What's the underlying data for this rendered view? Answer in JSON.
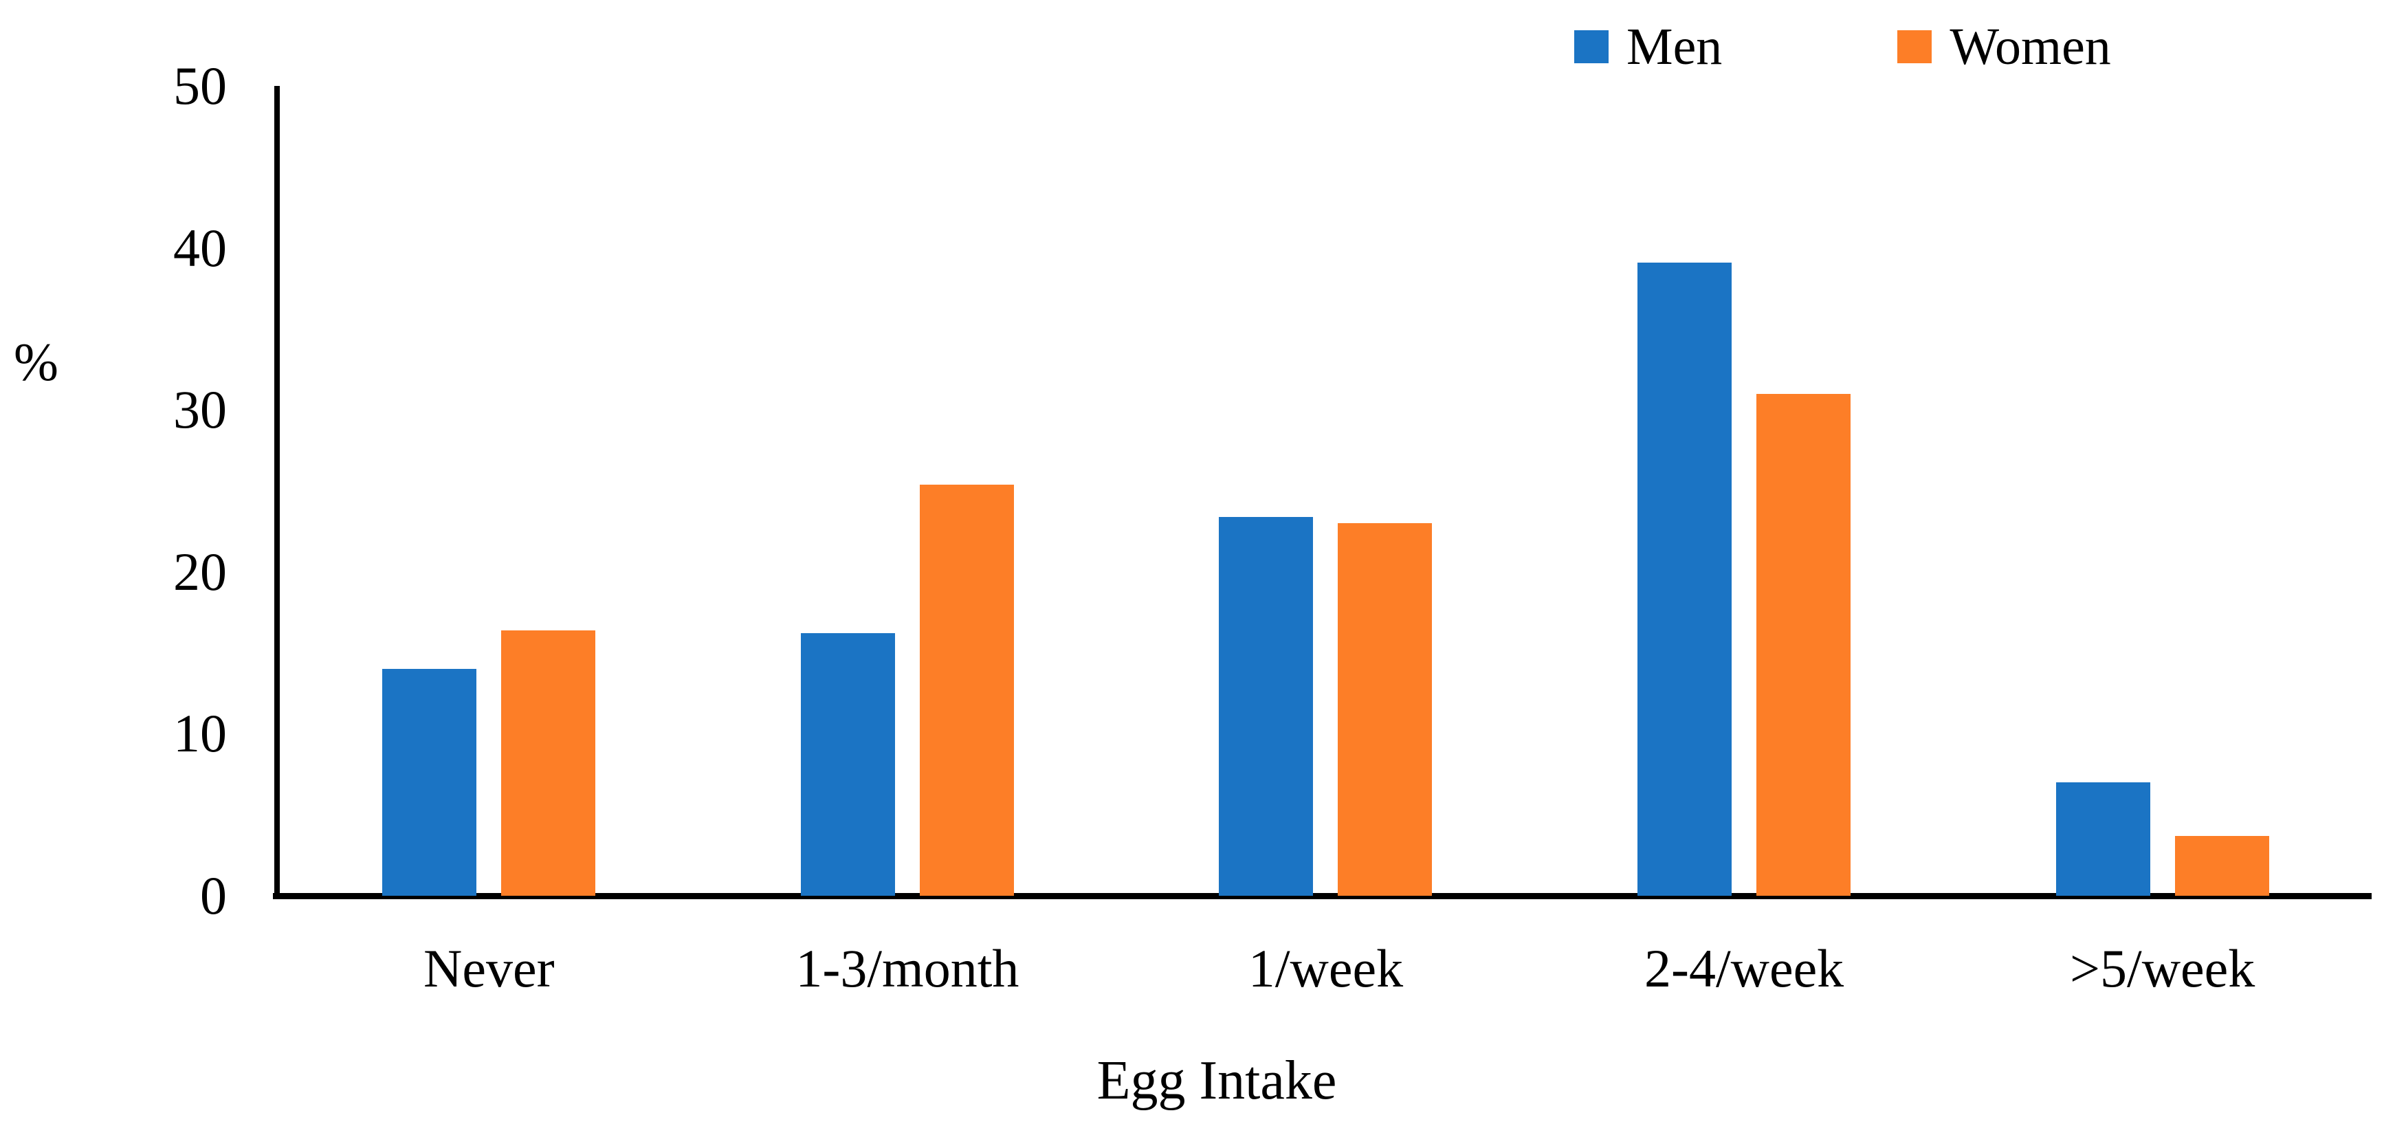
{
  "figure": {
    "background_color": "#FFFFFF",
    "axis_color": "#000000"
  },
  "chart_data": {
    "type": "bar",
    "title": "",
    "categories": [
      "Never",
      "1-3/month",
      "1/week",
      "2-4/week",
      ">5/week"
    ],
    "series": [
      {
        "name": "Men",
        "color": "#1B74C4",
        "values": [
          14.0,
          16.2,
          23.4,
          39.1,
          7.0
        ]
      },
      {
        "name": "Women",
        "color": "#FD7E27",
        "values": [
          16.4,
          25.4,
          23.0,
          31.0,
          3.7
        ]
      }
    ],
    "xlabel": "Egg Intake",
    "ylabel": "%",
    "ylim": [
      0,
      50
    ],
    "yticks": [
      0,
      10,
      20,
      30,
      40,
      50
    ],
    "grid": false,
    "legend_position": "top-right"
  }
}
